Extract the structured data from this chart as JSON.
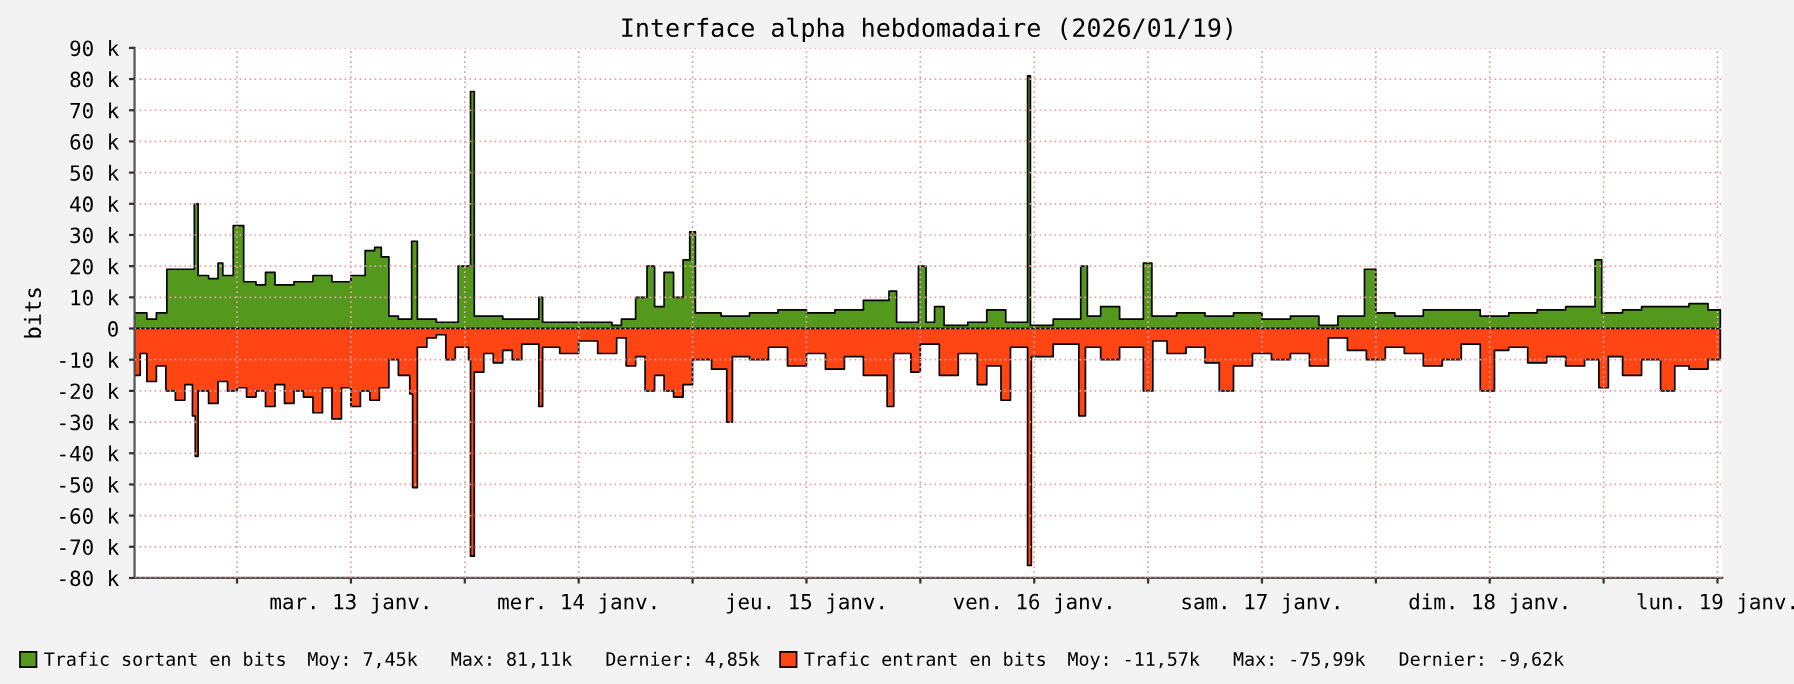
{
  "chart_data": {
    "type": "area",
    "title": "Interface alpha hebdomadaire (2026/01/19)",
    "ylabel": "bits",
    "xlim": [
      "2026-01-12T13:12",
      "2026-01-19T12:30"
    ],
    "ylim": [
      -80000,
      90000
    ],
    "xticks": [
      {
        "value": "2026-01-13T00:00",
        "label": null
      },
      {
        "value": "2026-01-13T12:00",
        "label": "mar. 13 janv."
      },
      {
        "value": "2026-01-14T00:00",
        "label": null
      },
      {
        "value": "2026-01-14T12:00",
        "label": "mer. 14 janv."
      },
      {
        "value": "2026-01-15T00:00",
        "label": null
      },
      {
        "value": "2026-01-15T12:00",
        "label": "jeu. 15 janv."
      },
      {
        "value": "2026-01-16T00:00",
        "label": null
      },
      {
        "value": "2026-01-16T12:00",
        "label": "ven. 16 janv."
      },
      {
        "value": "2026-01-17T00:00",
        "label": null
      },
      {
        "value": "2026-01-17T12:00",
        "label": "sam. 17 janv."
      },
      {
        "value": "2026-01-18T00:00",
        "label": null
      },
      {
        "value": "2026-01-18T12:00",
        "label": "dim. 18 janv."
      },
      {
        "value": "2026-01-19T00:00",
        "label": null
      },
      {
        "value": "2026-01-19T12:00",
        "label": "lun. 19 janv."
      }
    ],
    "yticks": [
      {
        "value": -80000,
        "label": "-80 k"
      },
      {
        "value": -70000,
        "label": "-70 k"
      },
      {
        "value": -60000,
        "label": "-60 k"
      },
      {
        "value": -50000,
        "label": "-50 k"
      },
      {
        "value": -40000,
        "label": "-40 k"
      },
      {
        "value": -30000,
        "label": "-30 k"
      },
      {
        "value": -20000,
        "label": "-20 k"
      },
      {
        "value": -10000,
        "label": "-10 k"
      },
      0,
      {
        "value": 10000,
        "label": "10 k"
      },
      {
        "value": 20000,
        "label": "20 k"
      },
      {
        "value": 30000,
        "label": "30 k"
      },
      {
        "value": 40000,
        "label": "40 k"
      },
      {
        "value": 50000,
        "label": "50 k"
      },
      {
        "value": 60000,
        "label": "60 k"
      },
      {
        "value": 70000,
        "label": "70 k"
      },
      {
        "value": 80000,
        "label": "80 k"
      },
      {
        "value": 90000,
        "label": "90 k"
      }
    ],
    "grid": true,
    "legend": "bottom",
    "annotations": [
      "Moy: 7,45k   Max: 81,11k   Dernier: 4,85k",
      "Moy: -11,57k   Max: -75,99k   Dernier: -9,62k"
    ],
    "series": [
      {
        "name": "Trafic sortant en bits",
        "color": "#54991e",
        "x": [
          "2026-01-12T13:12",
          "2026-01-12T14:30",
          "2026-01-12T15:30",
          "2026-01-12T16:36",
          "2026-01-12T19:30",
          "2026-01-12T19:54",
          "2026-01-12T21:00",
          "2026-01-12T22:00",
          "2026-01-12T22:30",
          "2026-01-12T23:36",
          "2026-01-13T00:42",
          "2026-01-13T02:00",
          "2026-01-13T03:00",
          "2026-01-13T04:00",
          "2026-01-13T06:00",
          "2026-01-13T08:00",
          "2026-01-13T10:00",
          "2026-01-13T12:00",
          "2026-01-13T13:30",
          "2026-01-13T14:30",
          "2026-01-13T15:12",
          "2026-01-13T16:00",
          "2026-01-13T17:00",
          "2026-01-13T18:24",
          "2026-01-13T19:00",
          "2026-01-13T21:00",
          "2026-01-13T23:00",
          "2026-01-13T23:18",
          "2026-01-14T00:24",
          "2026-01-14T00:36",
          "2026-01-14T01:00",
          "2026-01-14T04:00",
          "2026-01-14T07:48",
          "2026-01-14T08:12",
          "2026-01-14T12:00",
          "2026-01-14T15:30",
          "2026-01-14T16:30",
          "2026-01-14T18:00",
          "2026-01-14T19:12",
          "2026-01-14T20:00",
          "2026-01-14T21:00",
          "2026-01-14T22:00",
          "2026-01-14T23:00",
          "2026-01-14T23:42",
          "2026-01-15T00:18",
          "2026-01-15T03:00",
          "2026-01-15T06:00",
          "2026-01-15T09:00",
          "2026-01-15T12:00",
          "2026-01-15T15:00",
          "2026-01-15T18:00",
          "2026-01-15T20:42",
          "2026-01-15T21:30",
          "2026-01-15T23:48",
          "2026-01-16T00:36",
          "2026-01-16T01:30",
          "2026-01-16T02:30",
          "2026-01-16T05:00",
          "2026-01-16T07:00",
          "2026-01-16T09:00",
          "2026-01-16T11:18",
          "2026-01-16T11:36",
          "2026-01-16T14:00",
          "2026-01-16T16:54",
          "2026-01-16T17:36",
          "2026-01-16T19:00",
          "2026-01-16T21:00",
          "2026-01-16T23:30",
          "2026-01-17T00:24",
          "2026-01-17T03:00",
          "2026-01-17T06:00",
          "2026-01-17T09:00",
          "2026-01-17T12:00",
          "2026-01-17T15:00",
          "2026-01-17T18:00",
          "2026-01-17T20:00",
          "2026-01-17T22:48",
          "2026-01-18T00:00",
          "2026-01-18T02:00",
          "2026-01-18T05:00",
          "2026-01-18T08:00",
          "2026-01-18T11:00",
          "2026-01-18T14:00",
          "2026-01-18T17:00",
          "2026-01-18T20:00",
          "2026-01-18T23:06",
          "2026-01-18T23:48",
          "2026-01-19T02:00",
          "2026-01-19T04:00",
          "2026-01-19T07:00",
          "2026-01-19T09:00",
          "2026-01-19T11:00",
          "2026-01-19T12:18"
        ],
        "values": [
          5000,
          3000,
          5000,
          19000,
          40000,
          17000,
          16000,
          21000,
          17000,
          33000,
          15000,
          14000,
          18000,
          14000,
          15000,
          17000,
          15000,
          17000,
          25000,
          26000,
          23000,
          4000,
          3000,
          28000,
          3000,
          2000,
          2000,
          20000,
          20000,
          76000,
          4000,
          3000,
          10000,
          2000,
          2000,
          1000,
          3000,
          10000,
          20000,
          7000,
          18000,
          10000,
          22000,
          31000,
          5000,
          4000,
          5000,
          6000,
          5000,
          6000,
          9000,
          12000,
          2000,
          20000,
          2000,
          7000,
          1000,
          2000,
          6000,
          2000,
          81000,
          1000,
          3000,
          20000,
          4000,
          7000,
          3000,
          21000,
          4000,
          5000,
          4000,
          5000,
          3000,
          4000,
          1000,
          4000,
          19000,
          5000,
          4000,
          6000,
          6000,
          4000,
          5000,
          6000,
          7000,
          22000,
          5000,
          6000,
          7000,
          7000,
          8000,
          6000,
          5000
        ]
      },
      {
        "name": "Trafic entrant en bits",
        "color": "#ff4513",
        "x": [
          "2026-01-12T13:12",
          "2026-01-12T13:48",
          "2026-01-12T14:30",
          "2026-01-12T15:30",
          "2026-01-12T16:30",
          "2026-01-12T17:30",
          "2026-01-12T18:30",
          "2026-01-12T19:18",
          "2026-01-12T19:36",
          "2026-01-12T19:54",
          "2026-01-12T21:00",
          "2026-01-12T22:00",
          "2026-01-12T23:00",
          "2026-01-13T00:00",
          "2026-01-13T01:00",
          "2026-01-13T02:00",
          "2026-01-13T03:00",
          "2026-01-13T04:00",
          "2026-01-13T05:00",
          "2026-01-13T06:00",
          "2026-01-13T07:00",
          "2026-01-13T08:00",
          "2026-01-13T09:00",
          "2026-01-13T10:00",
          "2026-01-13T11:00",
          "2026-01-13T12:00",
          "2026-01-13T13:00",
          "2026-01-13T14:00",
          "2026-01-13T15:00",
          "2026-01-13T16:00",
          "2026-01-13T17:00",
          "2026-01-13T18:12",
          "2026-01-13T18:30",
          "2026-01-13T19:00",
          "2026-01-13T20:00",
          "2026-01-13T21:00",
          "2026-01-13T22:00",
          "2026-01-13T23:00",
          "2026-01-14T00:24",
          "2026-01-14T00:36",
          "2026-01-14T01:00",
          "2026-01-14T02:00",
          "2026-01-14T03:00",
          "2026-01-14T04:00",
          "2026-01-14T05:00",
          "2026-01-14T06:00",
          "2026-01-14T07:48",
          "2026-01-14T08:12",
          "2026-01-14T10:00",
          "2026-01-14T12:00",
          "2026-01-14T14:00",
          "2026-01-14T16:00",
          "2026-01-14T17:00",
          "2026-01-14T18:00",
          "2026-01-14T19:00",
          "2026-01-14T20:00",
          "2026-01-14T21:00",
          "2026-01-14T22:00",
          "2026-01-14T23:00",
          "2026-01-15T00:00",
          "2026-01-15T02:00",
          "2026-01-15T03:36",
          "2026-01-15T04:12",
          "2026-01-15T06:00",
          "2026-01-15T08:00",
          "2026-01-15T10:00",
          "2026-01-15T12:00",
          "2026-01-15T14:00",
          "2026-01-15T16:00",
          "2026-01-15T18:00",
          "2026-01-15T20:30",
          "2026-01-15T21:12",
          "2026-01-15T23:00",
          "2026-01-16T00:00",
          "2026-01-16T02:00",
          "2026-01-16T04:00",
          "2026-01-16T06:00",
          "2026-01-16T07:00",
          "2026-01-16T08:30",
          "2026-01-16T09:30",
          "2026-01-16T11:18",
          "2026-01-16T11:42",
          "2026-01-16T14:00",
          "2026-01-16T16:42",
          "2026-01-16T17:24",
          "2026-01-16T19:00",
          "2026-01-16T21:00",
          "2026-01-16T23:30",
          "2026-01-17T00:30",
          "2026-01-17T02:00",
          "2026-01-17T04:00",
          "2026-01-17T06:00",
          "2026-01-17T07:30",
          "2026-01-17T09:00",
          "2026-01-17T11:00",
          "2026-01-17T13:00",
          "2026-01-17T15:00",
          "2026-01-17T17:00",
          "2026-01-17T19:00",
          "2026-01-17T21:00",
          "2026-01-17T23:00",
          "2026-01-18T01:00",
          "2026-01-18T03:00",
          "2026-01-18T05:00",
          "2026-01-18T07:00",
          "2026-01-18T09:00",
          "2026-01-18T11:00",
          "2026-01-18T12:30",
          "2026-01-18T14:00",
          "2026-01-18T16:00",
          "2026-01-18T18:00",
          "2026-01-18T20:00",
          "2026-01-18T22:00",
          "2026-01-18T23:30",
          "2026-01-19T00:30",
          "2026-01-19T02:00",
          "2026-01-19T04:00",
          "2026-01-19T06:00",
          "2026-01-19T07:30",
          "2026-01-19T09:00",
          "2026-01-19T11:00",
          "2026-01-19T12:18"
        ],
        "values": [
          -15000,
          -8000,
          -17000,
          -12000,
          -20000,
          -23000,
          -18000,
          -28000,
          -41000,
          -20000,
          -24000,
          -17000,
          -20000,
          -19000,
          -22000,
          -20000,
          -25000,
          -18000,
          -24000,
          -20000,
          -22000,
          -27000,
          -19000,
          -29000,
          -19000,
          -25000,
          -20000,
          -23000,
          -19000,
          -10000,
          -15000,
          -21000,
          -51000,
          -6000,
          -3000,
          -2000,
          -10000,
          -6000,
          -10000,
          -73000,
          -14000,
          -8000,
          -11000,
          -7000,
          -10000,
          -5000,
          -25000,
          -6000,
          -8000,
          -4000,
          -8000,
          -3000,
          -12000,
          -9000,
          -20000,
          -15000,
          -20000,
          -22000,
          -18000,
          -10000,
          -13000,
          -30000,
          -9000,
          -10000,
          -6000,
          -12000,
          -8000,
          -13000,
          -9000,
          -15000,
          -25000,
          -8000,
          -14000,
          -5000,
          -15000,
          -8000,
          -18000,
          -12000,
          -23000,
          -6000,
          -76000,
          -9000,
          -5000,
          -28000,
          -6000,
          -10000,
          -6000,
          -20000,
          -4000,
          -8000,
          -6000,
          -11000,
          -20000,
          -12000,
          -8000,
          -10000,
          -8000,
          -12000,
          -3000,
          -7000,
          -10000,
          -6000,
          -8000,
          -12000,
          -10000,
          -5000,
          -20000,
          -7000,
          -6000,
          -11000,
          -9000,
          -12000,
          -10000,
          -19000,
          -9000,
          -15000,
          -10000,
          -20000,
          -12000,
          -13000,
          -10000,
          -10000
        ]
      }
    ]
  }
}
